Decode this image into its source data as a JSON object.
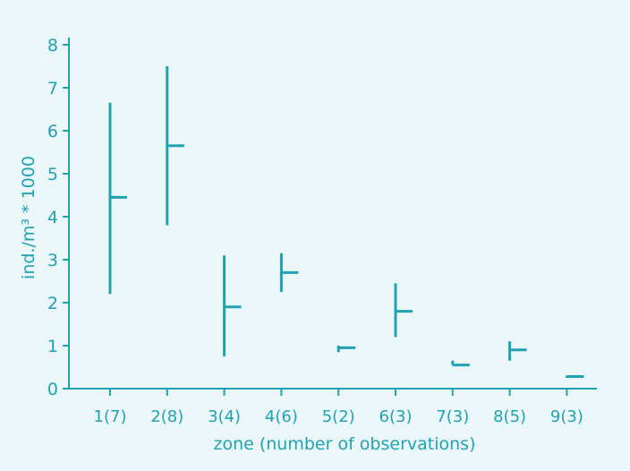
{
  "colors": {
    "background": "#eaf6f8",
    "ink": "#1fa3b3"
  },
  "chart_data": {
    "type": "range",
    "xlabel": "zone (number of observations)",
    "ylabel": "ind./m³ * 1000",
    "ylim": [
      0,
      8
    ],
    "yticks": [
      "0",
      "1",
      "2",
      "3",
      "4",
      "5",
      "6",
      "7",
      "8"
    ],
    "categories": [
      "1(7)",
      "2(8)",
      "3(4)",
      "4(6)",
      "5(2)",
      "6(3)",
      "7(3)",
      "8(5)",
      "9(3)"
    ],
    "min": [
      2.2,
      3.8,
      0.75,
      2.25,
      0.85,
      1.2,
      0.55,
      0.65,
      0.25
    ],
    "max": [
      6.65,
      7.5,
      3.1,
      3.15,
      1.0,
      2.45,
      0.65,
      1.1,
      0.3
    ],
    "mean": [
      4.45,
      5.65,
      1.9,
      2.7,
      0.95,
      1.8,
      0.55,
      0.9,
      0.28
    ],
    "grid": false,
    "legend": "none"
  }
}
